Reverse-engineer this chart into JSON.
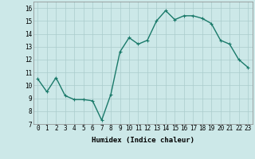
{
  "x": [
    0,
    1,
    2,
    3,
    4,
    5,
    6,
    7,
    8,
    9,
    10,
    11,
    12,
    13,
    14,
    15,
    16,
    17,
    18,
    19,
    20,
    21,
    22,
    23
  ],
  "y": [
    10.5,
    9.5,
    10.6,
    9.2,
    8.9,
    8.9,
    8.8,
    7.3,
    9.3,
    12.6,
    13.7,
    13.2,
    13.5,
    15.0,
    15.8,
    15.1,
    15.4,
    15.4,
    15.2,
    14.8,
    13.5,
    13.2,
    12.0,
    11.4
  ],
  "line_color": "#1a7a6a",
  "marker": "+",
  "marker_size": 3,
  "bg_color": "#cce8e8",
  "grid_color": "#aacccc",
  "xlabel": "Humidex (Indice chaleur)",
  "ylim": [
    7,
    16.5
  ],
  "xlim": [
    -0.5,
    23.5
  ],
  "yticks": [
    7,
    8,
    9,
    10,
    11,
    12,
    13,
    14,
    15,
    16
  ],
  "xticks": [
    0,
    1,
    2,
    3,
    4,
    5,
    6,
    7,
    8,
    9,
    10,
    11,
    12,
    13,
    14,
    15,
    16,
    17,
    18,
    19,
    20,
    21,
    22,
    23
  ],
  "xlabel_fontsize": 6.5,
  "tick_fontsize": 5.5,
  "linewidth": 1.0
}
